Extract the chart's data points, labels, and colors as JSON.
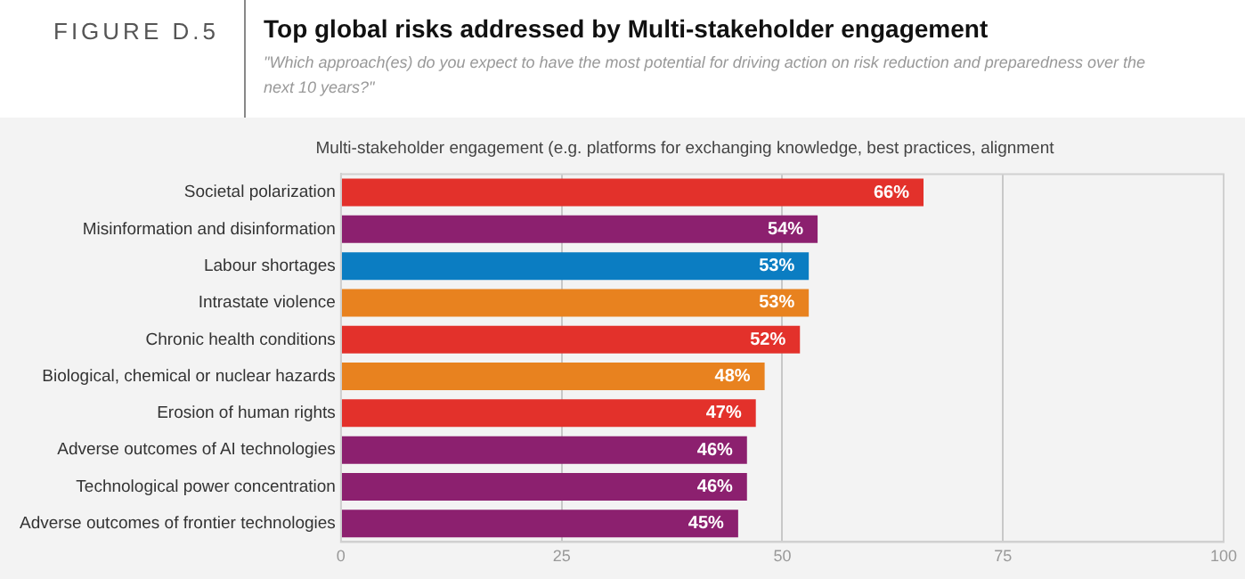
{
  "chart_data": {
    "type": "bar",
    "orientation": "horizontal",
    "title": "Top global risks addressed by Multi-stakeholder engagement",
    "subtitle": "\"Which approach(es) do you expect to have the most potential for driving action on risk reduction and preparedness over the next 10 years?\"",
    "annotations": [
      "FIGURE D.5",
      "Multi-stakeholder engagement (e.g. platforms for exchanging knowledge, best practices, alignment"
    ],
    "categories": [
      "Societal polarization",
      "Misinformation and disinformation",
      "Labour shortages",
      "Intrastate violence",
      "Chronic health conditions",
      "Biological, chemical or nuclear hazards",
      "Erosion of human rights",
      "Adverse outcomes of AI technologies",
      "Technological power concentration",
      "Adverse outcomes of frontier technologies"
    ],
    "values": [
      66,
      54,
      53,
      53,
      52,
      48,
      47,
      46,
      46,
      45
    ],
    "value_labels": [
      "66%",
      "54%",
      "53%",
      "53%",
      "52%",
      "48%",
      "47%",
      "46%",
      "46%",
      "45%"
    ],
    "colors": [
      "#e3312b",
      "#8c206f",
      "#0b7dc2",
      "#e8821f",
      "#e3312b",
      "#e8821f",
      "#e3312b",
      "#8c206f",
      "#8c206f",
      "#8c206f"
    ],
    "xlim": [
      0,
      100
    ],
    "xticks": [
      0,
      25,
      50,
      75,
      100
    ],
    "grid": "x",
    "legend": false
  }
}
